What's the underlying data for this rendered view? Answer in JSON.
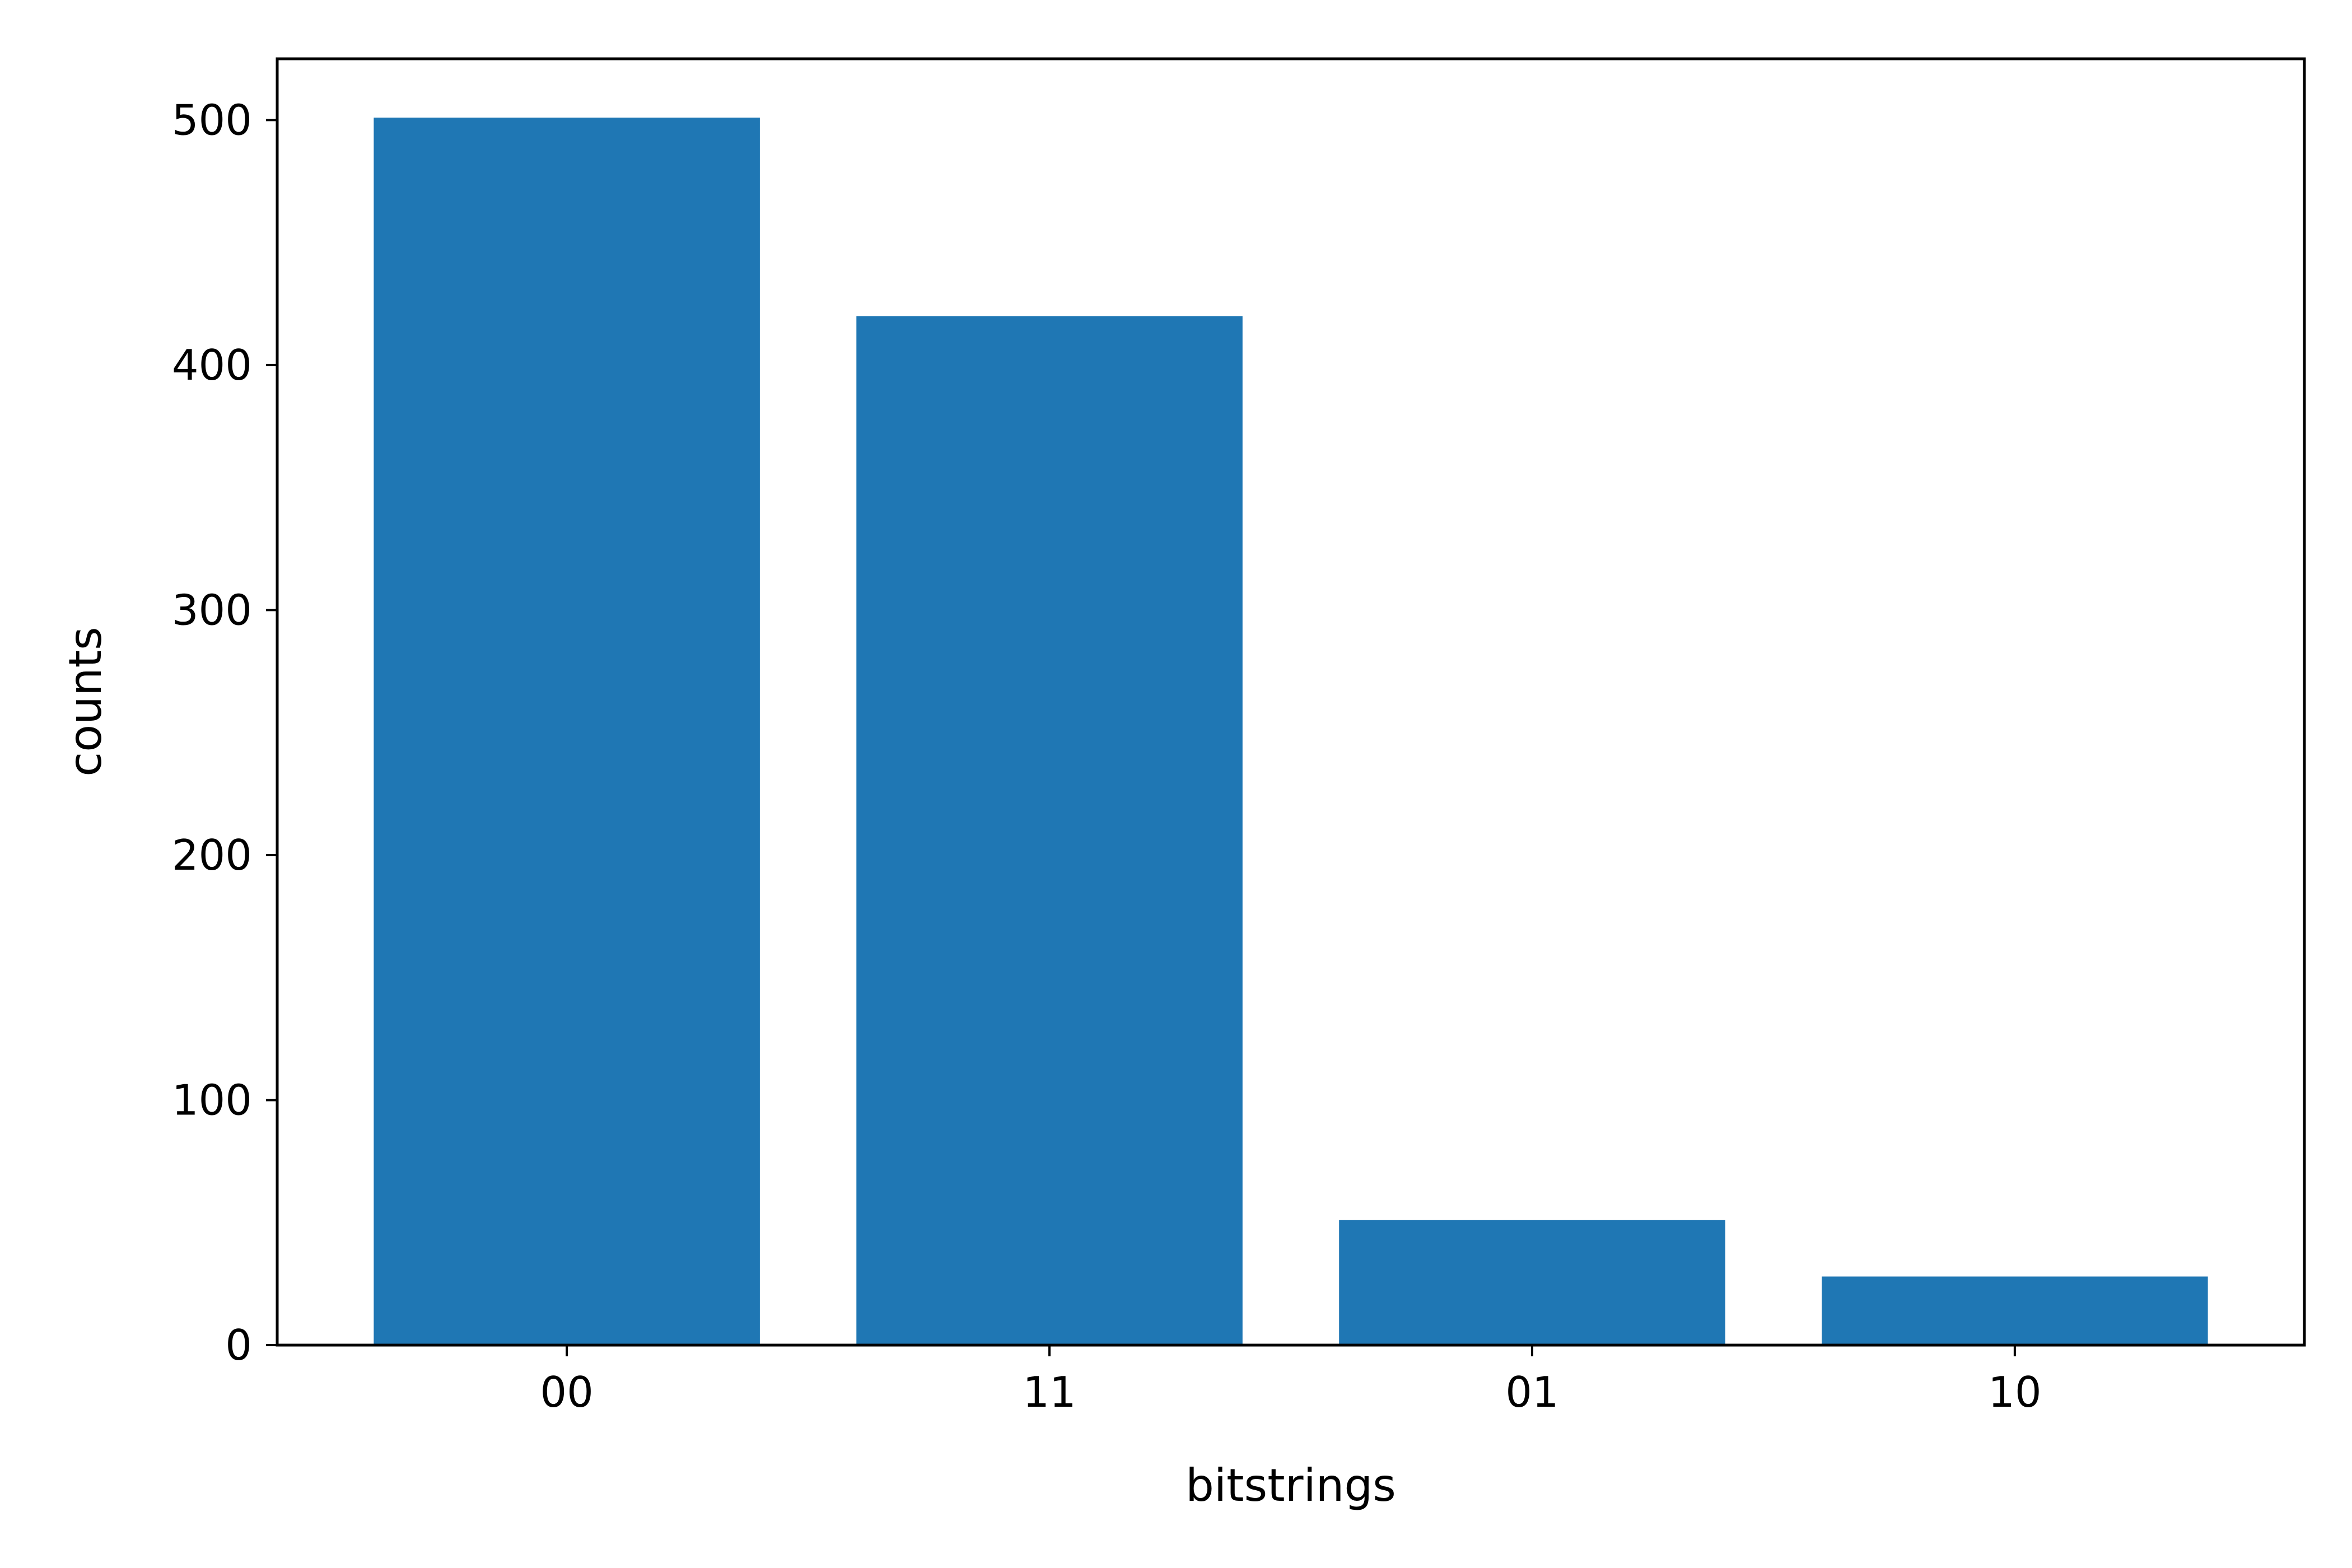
{
  "chart_data": {
    "type": "bar",
    "categories": [
      "00",
      "11",
      "01",
      "10"
    ],
    "values": [
      501,
      420,
      51,
      28
    ],
    "title": "",
    "xlabel": "bitstrings",
    "ylabel": "counts",
    "ylim": [
      0,
      525
    ],
    "yticks": [
      0,
      100,
      200,
      300,
      400,
      500
    ],
    "grid": false,
    "legend": "none",
    "bar_color": "#1f77b4"
  }
}
